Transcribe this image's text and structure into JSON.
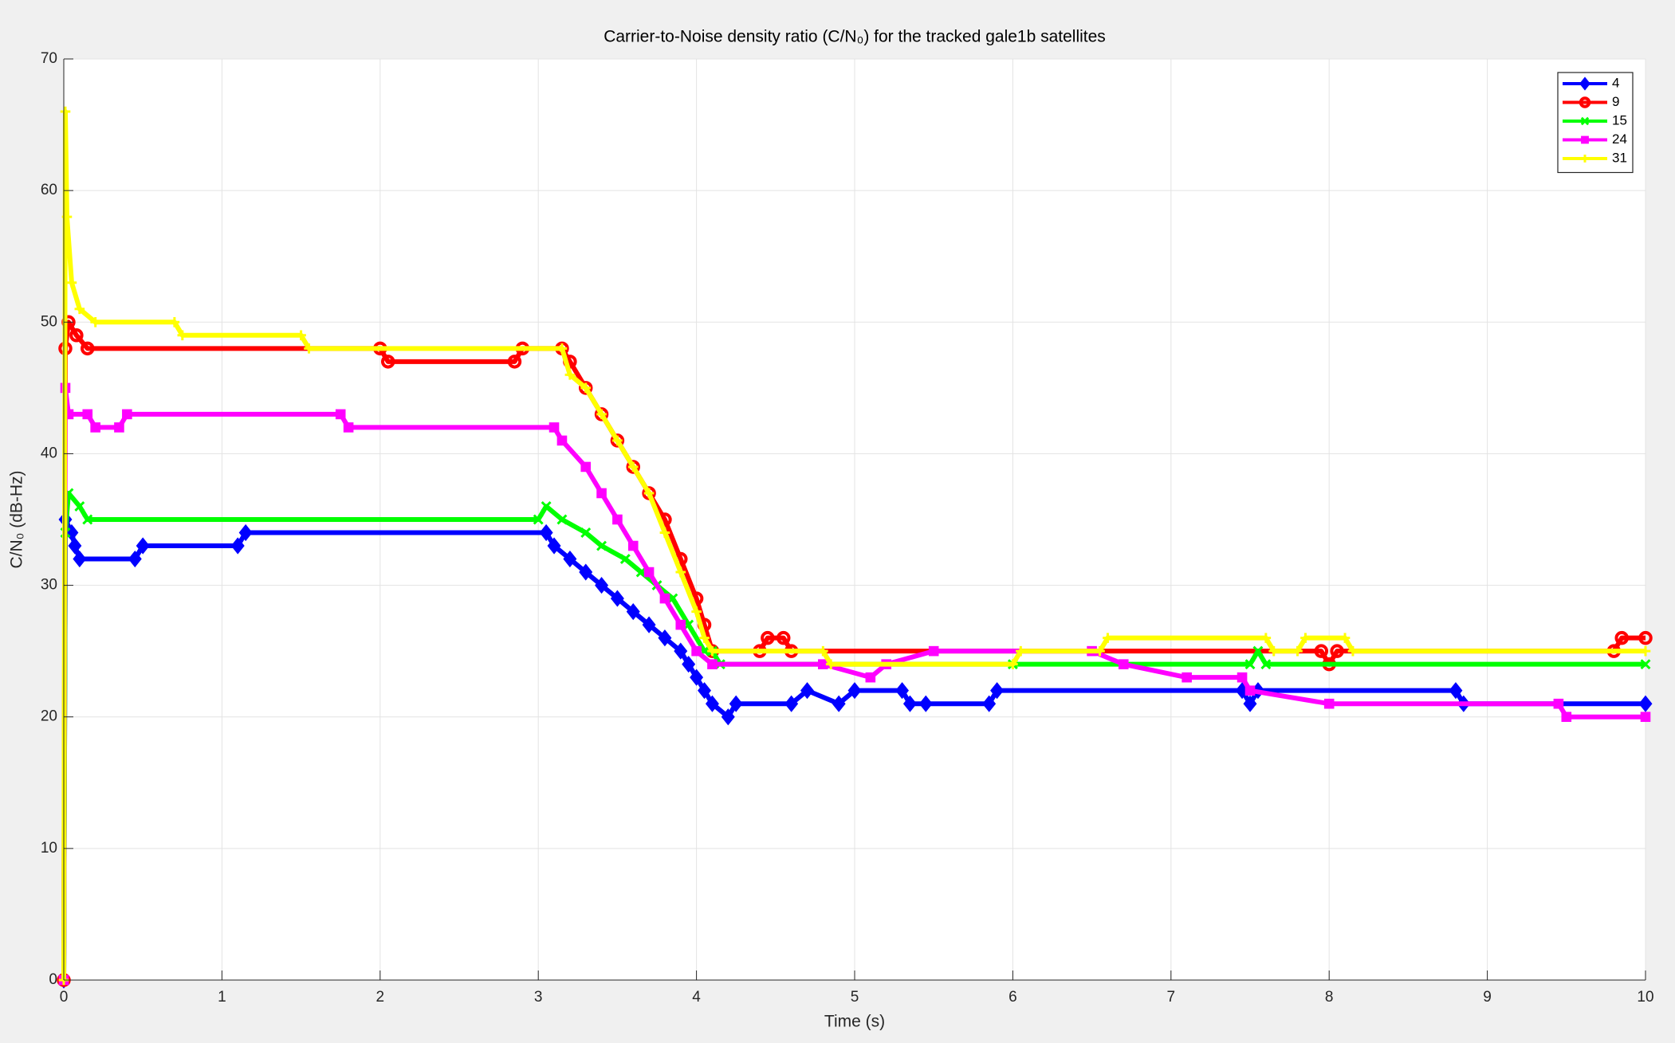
{
  "chart_data": {
    "type": "line",
    "title": "Carrier-to-Noise density ratio (C/N₀) for the tracked gale1b satellites",
    "xlabel": "Time (s)",
    "ylabel": "C/N₀ (dB-Hz)",
    "xlim": [
      0,
      10
    ],
    "ylim": [
      0,
      70
    ],
    "xticks": [
      0,
      1,
      2,
      3,
      4,
      5,
      6,
      7,
      8,
      9,
      10
    ],
    "yticks": [
      0,
      10,
      20,
      30,
      40,
      50,
      60,
      70
    ],
    "grid": true,
    "legend": "upper right",
    "series": [
      {
        "name": "4",
        "color": "#0000ff",
        "marker": "diamond",
        "x": [
          0,
          0.01,
          0.05,
          0.07,
          0.1,
          0.45,
          0.5,
          1.1,
          1.15,
          3.05,
          3.1,
          3.2,
          3.3,
          3.4,
          3.5,
          3.6,
          3.7,
          3.8,
          3.9,
          3.95,
          4.0,
          4.05,
          4.1,
          4.2,
          4.25,
          4.6,
          4.7,
          4.9,
          5.0,
          5.3,
          5.35,
          5.45,
          5.85,
          5.9,
          7.45,
          7.5,
          7.55,
          8.8,
          8.85,
          10
        ],
        "values": [
          0,
          35,
          34,
          33,
          32,
          32,
          33,
          33,
          34,
          34,
          33,
          32,
          31,
          30,
          29,
          28,
          27,
          26,
          25,
          24,
          23,
          22,
          21,
          20,
          21,
          21,
          22,
          21,
          22,
          22,
          21,
          21,
          21,
          22,
          22,
          21,
          22,
          22,
          21,
          21
        ]
      },
      {
        "name": "9",
        "color": "#ff0000",
        "marker": "circle",
        "x": [
          0,
          0.01,
          0.03,
          0.08,
          0.15,
          2.0,
          2.05,
          2.85,
          2.9,
          3.15,
          3.2,
          3.3,
          3.4,
          3.5,
          3.6,
          3.7,
          3.8,
          3.9,
          4.0,
          4.05,
          4.1,
          4.4,
          4.45,
          4.55,
          4.6,
          7.95,
          8.0,
          8.05,
          9.8,
          9.85,
          10
        ],
        "values": [
          0,
          48,
          50,
          49,
          48,
          48,
          47,
          47,
          48,
          48,
          47,
          45,
          43,
          41,
          39,
          37,
          35,
          32,
          29,
          27,
          25,
          25,
          26,
          26,
          25,
          25,
          24,
          25,
          25,
          26,
          26
        ]
      },
      {
        "name": "15",
        "color": "#00ff00",
        "marker": "x",
        "x": [
          0,
          0.01,
          0.03,
          0.1,
          0.15,
          3.0,
          3.05,
          3.15,
          3.3,
          3.4,
          3.55,
          3.65,
          3.75,
          3.85,
          3.95,
          4.05,
          4.1,
          4.15,
          6.0,
          7.5,
          7.55,
          7.6,
          10
        ],
        "values": [
          0,
          34,
          37,
          36,
          35,
          35,
          36,
          35,
          34,
          33,
          32,
          31,
          30,
          29,
          27,
          25,
          25,
          24,
          24,
          24,
          25,
          24,
          24
        ]
      },
      {
        "name": "24",
        "color": "#ff00ff",
        "marker": "square",
        "x": [
          0,
          0.01,
          0.03,
          0.15,
          0.2,
          0.35,
          0.4,
          1.75,
          1.8,
          3.1,
          3.15,
          3.3,
          3.4,
          3.5,
          3.6,
          3.7,
          3.8,
          3.9,
          4.0,
          4.1,
          4.8,
          5.1,
          5.2,
          5.5,
          6.5,
          6.7,
          7.1,
          7.45,
          7.5,
          8.0,
          9.45,
          9.5,
          10
        ],
        "values": [
          0,
          45,
          43,
          43,
          42,
          42,
          43,
          43,
          42,
          42,
          41,
          39,
          37,
          35,
          33,
          31,
          29,
          27,
          25,
          24,
          24,
          23,
          24,
          25,
          25,
          24,
          23,
          23,
          22,
          21,
          21,
          20,
          20
        ]
      },
      {
        "name": "31",
        "color": "#ffff00",
        "marker": "plus",
        "x": [
          0,
          0.01,
          0.02,
          0.05,
          0.1,
          0.2,
          0.7,
          0.75,
          1.5,
          1.55,
          3.15,
          3.2,
          3.3,
          3.4,
          3.5,
          3.6,
          3.7,
          3.8,
          3.9,
          4.0,
          4.05,
          4.1,
          4.8,
          4.85,
          6.0,
          6.05,
          6.55,
          6.6,
          7.6,
          7.65,
          7.8,
          7.85,
          8.1,
          8.15,
          10
        ],
        "values": [
          0,
          66,
          58,
          53,
          51,
          50,
          50,
          49,
          49,
          48,
          48,
          46,
          45,
          43,
          41,
          39,
          37,
          34,
          31,
          28,
          26,
          25,
          25,
          24,
          24,
          25,
          25,
          26,
          26,
          25,
          25,
          26,
          26,
          25,
          25
        ]
      }
    ]
  }
}
